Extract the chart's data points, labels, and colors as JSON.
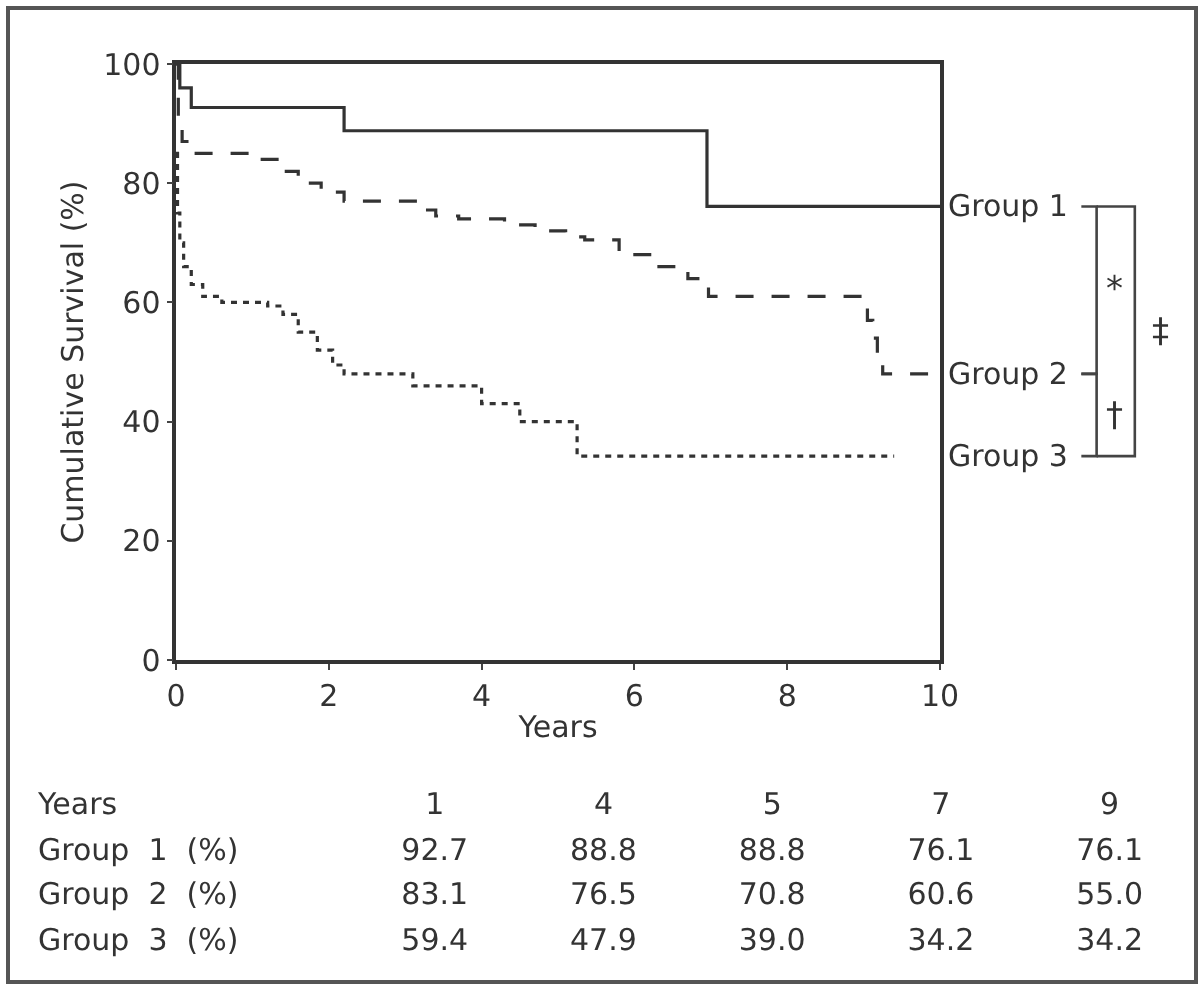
{
  "chart_data": [
    {
      "type": "step",
      "xlabel": "Years",
      "ylabel": "Cumulative Survival (%)",
      "xlim": [
        0,
        10
      ],
      "xticks": [
        0,
        2,
        4,
        6,
        8,
        10
      ],
      "ylim": [
        0,
        100
      ],
      "yticks": [
        0,
        20,
        40,
        60,
        80,
        100
      ],
      "grid": false,
      "legend": false,
      "series": [
        {
          "name": "Group 1",
          "color": "#333333",
          "line_style": "solid",
          "x": [
            0,
            0.05,
            0.2,
            2.2,
            6.95,
            10
          ],
          "values": [
            100,
            96,
            92.7,
            88.8,
            76.1,
            76.1
          ]
        },
        {
          "name": "Group 2",
          "color": "#333333",
          "line_style": "dashed",
          "x": [
            0,
            0.03,
            0.08,
            0.2,
            1.1,
            1.4,
            1.6,
            1.9,
            2.2,
            3.2,
            3.4,
            3.7,
            4.3,
            4.7,
            5.1,
            5.35,
            5.8,
            6.3,
            6.7,
            6.97,
            9.05,
            9.12,
            9.18,
            9.25,
            10
          ],
          "values": [
            100,
            90,
            87,
            85,
            84,
            82,
            80,
            78.5,
            77,
            75.5,
            74.5,
            74,
            73,
            72,
            71,
            70.5,
            68,
            66,
            64,
            61,
            57,
            54,
            51,
            48,
            48
          ]
        },
        {
          "name": "Group 3",
          "color": "#333333",
          "line_style": "dotted",
          "x": [
            0,
            0.02,
            0.05,
            0.1,
            0.2,
            0.35,
            0.6,
            1.2,
            1.4,
            1.6,
            1.85,
            2.05,
            2.2,
            3.1,
            4.0,
            4.5,
            5.25,
            9.4
          ],
          "values": [
            85,
            75,
            70,
            66,
            63,
            61,
            60,
            59.4,
            58,
            55,
            52,
            49.5,
            48,
            46,
            43,
            40,
            34.2,
            34.2
          ]
        }
      ],
      "annotations": [
        "*",
        "†",
        "‡"
      ]
    },
    {
      "type": "other",
      "xlabel": "Years",
      "categories": [
        "1",
        "4",
        "5",
        "7",
        "9"
      ],
      "data_labels": true,
      "series": [
        {
          "name": "Group  1  (%)",
          "values": [
            92.7,
            88.8,
            88.8,
            76.1,
            76.1
          ]
        },
        {
          "name": "Group  2  (%)",
          "values": [
            83.1,
            76.5,
            70.8,
            60.6,
            55.0
          ],
          "value_labels": [
            "83.1",
            "76.5",
            "70.8",
            "60.6",
            "55.0"
          ]
        },
        {
          "name": "Group  3  (%)",
          "values": [
            59.4,
            47.9,
            39.0,
            34.2,
            34.2
          ],
          "value_labels": [
            "59.4",
            "47.9",
            "39.0",
            "34.2",
            "34.2"
          ]
        }
      ]
    }
  ]
}
